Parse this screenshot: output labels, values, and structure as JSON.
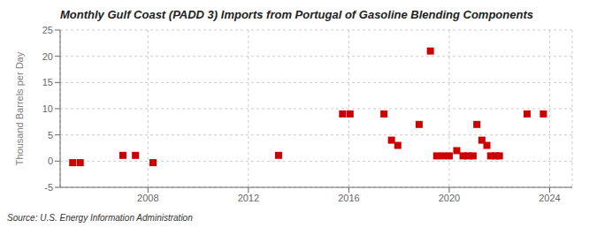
{
  "chart_data": {
    "type": "scatter",
    "title": "Monthly Gulf Coast (PADD 3) Imports from Portugal of Gasoline Blending Components",
    "ylabel": "Thousand Barrels per Day",
    "source": "Source: U.S. Energy Information Administration",
    "x": [
      2005.0,
      2005.3,
      2007.0,
      2007.5,
      2008.2,
      2013.2,
      2015.75,
      2016.05,
      2017.4,
      2017.7,
      2017.95,
      2018.8,
      2019.25,
      2019.5,
      2019.75,
      2020.0,
      2020.3,
      2020.55,
      2020.75,
      2020.95,
      2021.1,
      2021.3,
      2021.5,
      2021.65,
      2021.85,
      2022.0,
      2023.1,
      2023.75
    ],
    "values": [
      -0.3,
      -0.3,
      1.1,
      1.1,
      -0.3,
      1.1,
      9.0,
      9.0,
      9.0,
      4.0,
      3.0,
      7.0,
      21.0,
      1.0,
      1.0,
      1.0,
      2.0,
      1.0,
      1.0,
      1.0,
      7.0,
      4.0,
      3.0,
      1.0,
      1.0,
      1.0,
      9.0,
      9.0
    ],
    "color": "#cc0000",
    "marker": "square",
    "xlim": [
      2004.5,
      2024.9
    ],
    "xticks": [
      2008,
      2012,
      2016,
      2020,
      2024
    ],
    "ylim": [
      -5,
      25
    ],
    "yticks": [
      -5,
      0,
      5,
      10,
      15,
      20,
      25
    ],
    "grid": true
  }
}
